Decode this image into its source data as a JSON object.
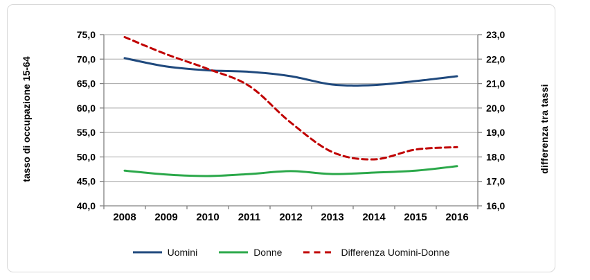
{
  "chart_data": {
    "type": "line",
    "title": "",
    "categories": [
      "2008",
      "2009",
      "2010",
      "2011",
      "2012",
      "2013",
      "2014",
      "2015",
      "2016"
    ],
    "series": [
      {
        "name": "Uomini",
        "axis": "left",
        "color": "#1F497D",
        "style": "solid",
        "values": [
          70.2,
          68.5,
          67.7,
          67.4,
          66.5,
          64.8,
          64.7,
          65.5,
          66.5
        ]
      },
      {
        "name": "Donne",
        "axis": "left",
        "color": "#2BA84A",
        "style": "solid",
        "values": [
          47.2,
          46.4,
          46.1,
          46.5,
          47.1,
          46.5,
          46.8,
          47.2,
          48.1
        ]
      },
      {
        "name": "Differenza Uomini-Donne",
        "axis": "right",
        "color": "#C00000",
        "style": "dashed",
        "values": [
          22.9,
          22.2,
          21.6,
          20.9,
          19.4,
          18.2,
          17.9,
          18.3,
          18.4
        ]
      }
    ],
    "left_axis": {
      "title": "tasso di occupazione 15-64",
      "min": 40,
      "max": 75,
      "step": 5,
      "ticks": [
        "40,0",
        "45,0",
        "50,0",
        "55,0",
        "60,0",
        "65,0",
        "70,0",
        "75,0"
      ]
    },
    "right_axis": {
      "title": "differenza  tra tassi",
      "min": 16,
      "max": 23,
      "step": 1,
      "ticks": [
        "16,0",
        "17,0",
        "18,0",
        "19,0",
        "20,0",
        "21,0",
        "22,0",
        "23,0"
      ]
    },
    "grid": true,
    "legend_position": "bottom",
    "colors": {
      "gridline": "#A6A6A6",
      "axis_line": "#808080",
      "frame_border": "#D9D9D9",
      "text": "#000000"
    }
  }
}
